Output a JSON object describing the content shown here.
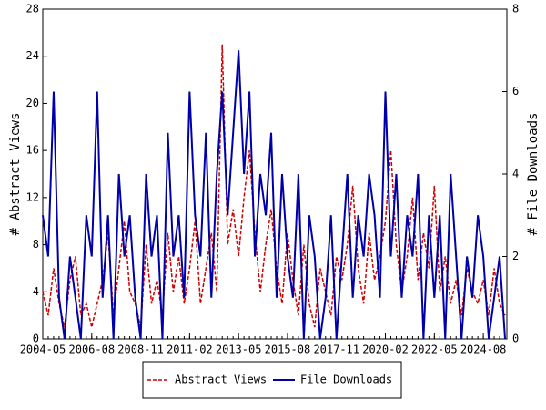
{
  "chart_data": {
    "type": "line",
    "y_label": "# Abstract Views",
    "y2_label": "# File Downloads",
    "x": [
      "2004-05",
      "2004-08",
      "2004-11",
      "2005-02",
      "2005-05",
      "2005-08",
      "2005-11",
      "2006-02",
      "2006-05",
      "2006-08",
      "2006-11",
      "2007-02",
      "2007-05",
      "2007-08",
      "2007-11",
      "2008-02",
      "2008-05",
      "2008-08",
      "2008-11",
      "2009-02",
      "2009-05",
      "2009-08",
      "2009-11",
      "2010-02",
      "2010-05",
      "2010-08",
      "2010-11",
      "2011-02",
      "2011-05",
      "2011-08",
      "2011-11",
      "2012-02",
      "2012-05",
      "2012-08",
      "2012-11",
      "2013-02",
      "2013-05",
      "2013-08",
      "2013-11",
      "2014-02",
      "2014-05",
      "2014-08",
      "2014-11",
      "2015-02",
      "2015-05",
      "2015-08",
      "2015-11",
      "2016-02",
      "2016-05",
      "2016-08",
      "2016-11",
      "2017-02",
      "2017-05",
      "2017-08",
      "2017-11",
      "2018-02",
      "2018-05",
      "2018-08",
      "2018-11",
      "2019-02",
      "2019-05",
      "2019-08",
      "2019-11",
      "2020-02",
      "2020-05",
      "2020-08",
      "2020-11",
      "2021-02",
      "2021-05",
      "2021-08",
      "2021-11",
      "2022-02",
      "2022-05",
      "2022-08",
      "2022-11",
      "2023-02",
      "2023-05",
      "2023-08",
      "2023-11",
      "2024-02",
      "2024-05",
      "2024-08",
      "2024-11",
      "2025-02",
      "2025-05",
      "2025-08"
    ],
    "xlim": [
      "2004-05",
      "2025-09"
    ],
    "xticks": [
      "2004-05",
      "2006-08",
      "2008-11",
      "2011-02",
      "2013-05",
      "2015-08",
      "2017-11",
      "2020-02",
      "2022-05",
      "2024-08"
    ],
    "ylim": [
      0,
      28
    ],
    "yticks": [
      0,
      4,
      8,
      12,
      16,
      20,
      24,
      28
    ],
    "y2lim": [
      0,
      8
    ],
    "y2ticks": [
      0,
      2,
      4,
      6,
      8
    ],
    "legend": "bottom",
    "series": [
      {
        "name": "Abstract Views",
        "color": "#cc0000",
        "dash": true,
        "values": [
          4,
          2,
          6,
          3,
          1,
          5,
          7,
          2,
          3,
          1,
          3,
          5,
          9,
          2,
          6,
          10,
          4,
          3,
          1,
          8,
          3,
          5,
          2,
          9,
          4,
          7,
          3,
          6,
          10,
          3,
          6,
          9,
          4,
          25,
          8,
          11,
          7,
          12,
          16,
          9,
          4,
          8,
          11,
          6,
          3,
          9,
          5,
          2,
          8,
          3,
          1,
          6,
          4,
          2,
          7,
          5,
          8,
          13,
          6,
          3,
          9,
          5,
          7,
          10,
          16,
          8,
          4,
          7,
          12,
          5,
          9,
          6,
          13,
          4,
          7,
          3,
          5,
          2,
          6,
          4,
          3,
          5,
          2,
          6,
          3,
          2
        ]
      },
      {
        "name": "File Downloads",
        "color": "#0000aa",
        "axis": "y2",
        "values": [
          3,
          2,
          6,
          1,
          0,
          2,
          1,
          0,
          3,
          2,
          6,
          1,
          3,
          0,
          4,
          2,
          3,
          1,
          0,
          4,
          2,
          3,
          0,
          5,
          2,
          3,
          1,
          6,
          3,
          2,
          5,
          1,
          4,
          6,
          3,
          5,
          7,
          4,
          6,
          2,
          4,
          3,
          5,
          1,
          4,
          2,
          1,
          4,
          0,
          3,
          2,
          0,
          1,
          3,
          0,
          2,
          4,
          1,
          3,
          2,
          4,
          3,
          1,
          6,
          2,
          4,
          1,
          3,
          2,
          4,
          0,
          3,
          1,
          3,
          0,
          4,
          2,
          0,
          2,
          1,
          3,
          2,
          0,
          1,
          2,
          0
        ]
      }
    ]
  }
}
